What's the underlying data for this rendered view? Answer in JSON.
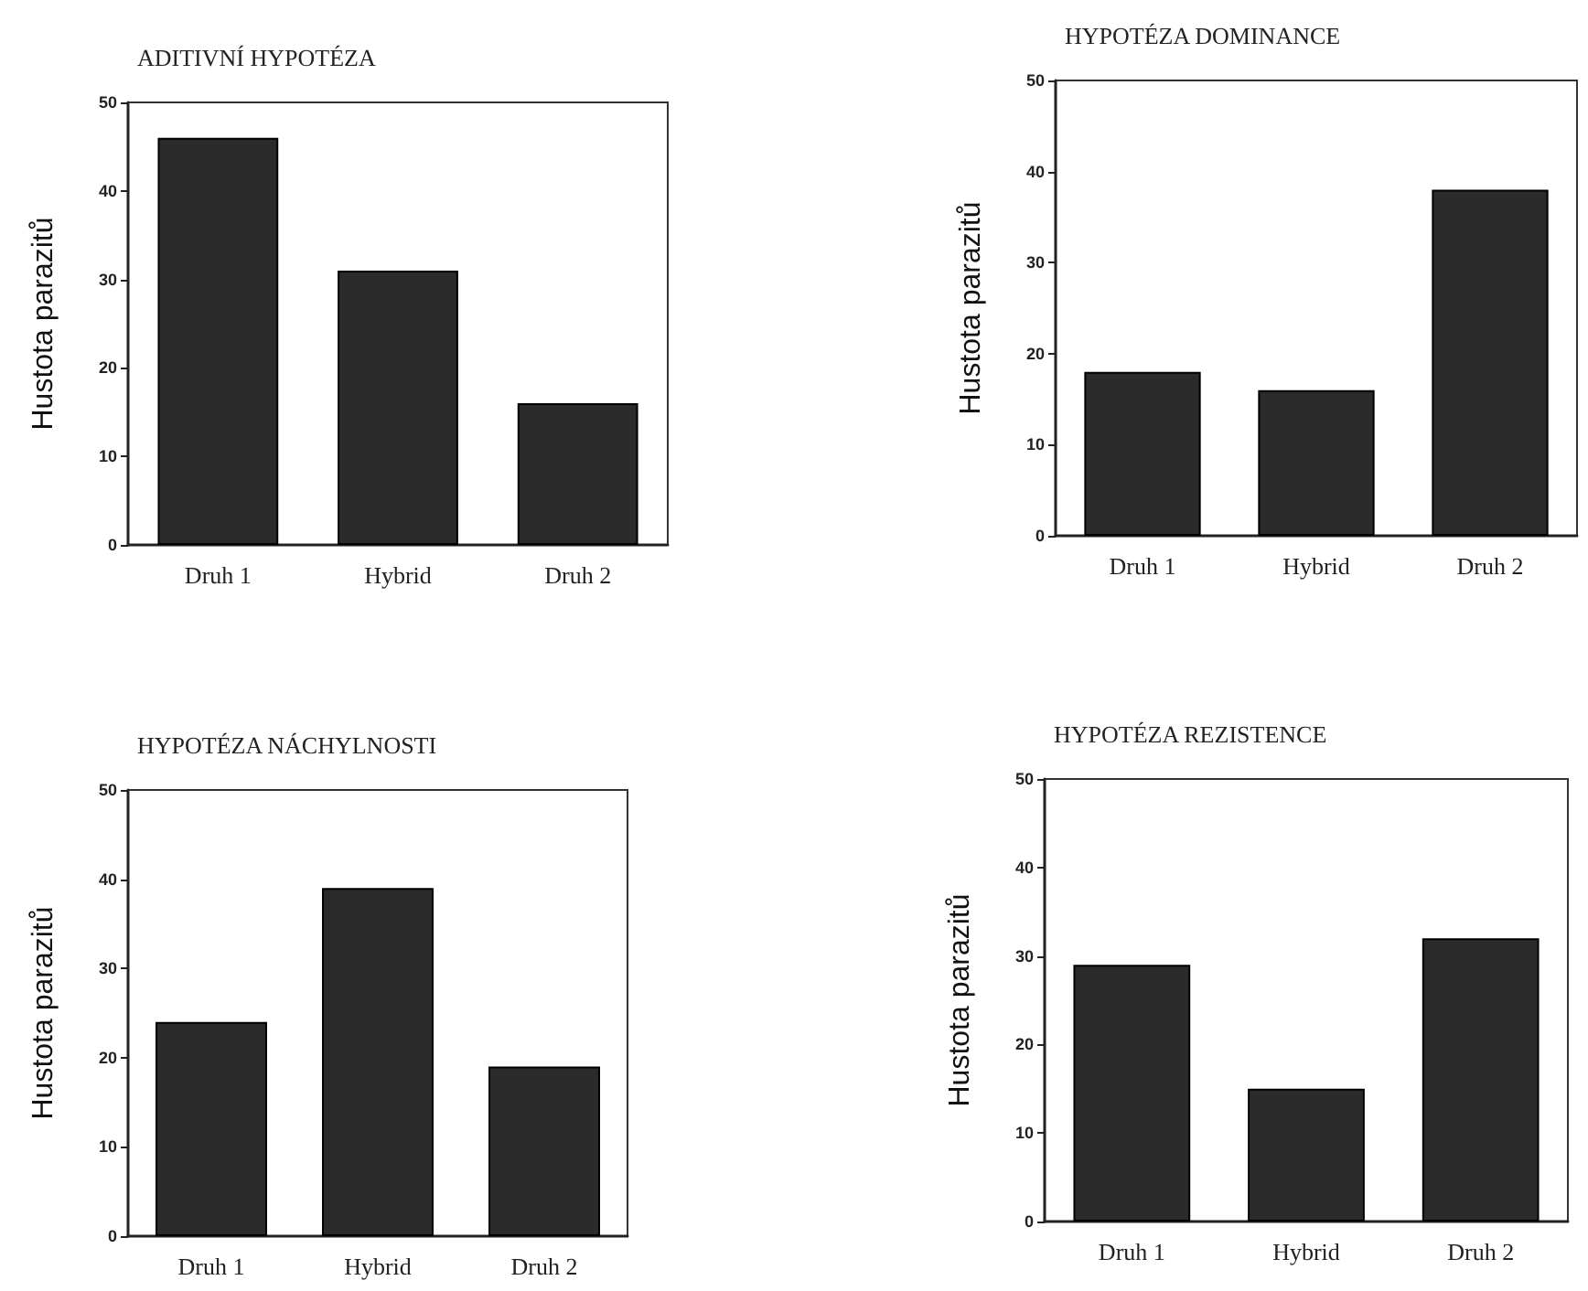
{
  "chart_data": [
    {
      "type": "bar",
      "title": "ADITIVNÍ HYPOTÉZA",
      "ylabel": "Hustota parazitů",
      "categories": [
        "Druh 1",
        "Hybrid",
        "Druh 2"
      ],
      "values": [
        46,
        31,
        16
      ],
      "color": "#2b2b2b",
      "ylim": [
        0,
        50
      ],
      "yticks": [
        0,
        10,
        20,
        30,
        40,
        50
      ],
      "grid": false
    },
    {
      "type": "bar",
      "title": "HYPOTÉZA DOMINANCE",
      "ylabel": "Hustota parazitů",
      "categories": [
        "Druh 1",
        "Hybrid",
        "Druh 2"
      ],
      "values": [
        18,
        16,
        38
      ],
      "color": "#2b2b2b",
      "ylim": [
        0,
        50
      ],
      "yticks": [
        0,
        10,
        20,
        30,
        40,
        50
      ],
      "grid": false
    },
    {
      "type": "bar",
      "title": "HYPOTÉZA NÁCHYLNOSTI",
      "ylabel": "Hustota parazitů",
      "categories": [
        "Druh 1",
        "Hybrid",
        "Druh 2"
      ],
      "values": [
        24,
        39,
        19
      ],
      "color": "#2b2b2b",
      "ylim": [
        0,
        50
      ],
      "yticks": [
        0,
        10,
        20,
        30,
        40,
        50
      ],
      "grid": false
    },
    {
      "type": "bar",
      "title": "HYPOTÉZA REZISTENCE",
      "ylabel": "Hustota parazitů",
      "categories": [
        "Druh 1",
        "Hybrid",
        "Druh 2"
      ],
      "values": [
        29,
        15,
        32
      ],
      "color": "#2b2b2b",
      "ylim": [
        0,
        50
      ],
      "yticks": [
        0,
        10,
        20,
        30,
        40,
        50
      ],
      "grid": false
    }
  ]
}
